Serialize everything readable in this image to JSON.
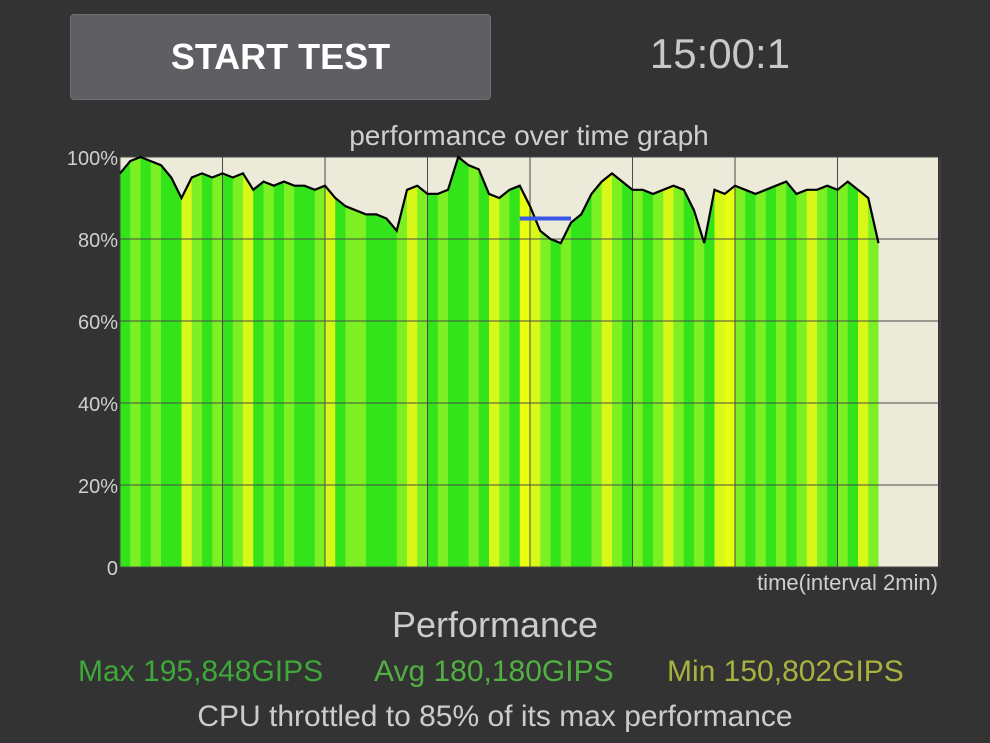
{
  "header": {
    "start_button_label": "START TEST",
    "timer": "15:00:1"
  },
  "chart_data": {
    "type": "area",
    "title": "performance over time graph",
    "xlabel": "time(interval 2min)",
    "ylabel": "",
    "ylim": [
      0,
      100
    ],
    "y_tick_labels": [
      "0",
      "20%",
      "40%",
      "60%",
      "80%",
      "100%"
    ],
    "grid": true,
    "x_interval_minutes": 2,
    "plot_background": "#ecead9",
    "fill_colors": [
      "#33e41a",
      "#7cf022",
      "#d8f81a",
      "#e8ff10"
    ],
    "line_color": "#000000",
    "marker_color": "#3a55e8",
    "x": [
      0,
      0.1,
      0.2,
      0.3,
      0.4,
      0.5,
      0.6,
      0.7,
      0.8,
      0.9,
      1,
      1.1,
      1.2,
      1.3,
      1.4,
      1.5,
      1.6,
      1.7,
      1.8,
      1.9,
      2,
      2.1,
      2.2,
      2.3,
      2.4,
      2.5,
      2.6,
      2.7,
      2.8,
      2.9,
      3,
      3.1,
      3.2,
      3.3,
      3.4,
      3.5,
      3.6,
      3.7,
      3.8,
      3.9,
      4,
      4.1,
      4.2,
      4.3,
      4.4,
      4.5,
      4.6,
      4.7,
      4.8,
      4.9,
      5,
      5.1,
      5.2,
      5.3,
      5.4,
      5.5,
      5.6,
      5.7,
      5.8,
      5.9,
      6,
      6.1,
      6.2,
      6.3,
      6.4,
      6.5,
      6.6,
      6.7,
      6.8,
      6.9,
      7,
      7.1,
      7.2,
      7.3,
      7.4
    ],
    "values": [
      96,
      99,
      100,
      99,
      98,
      95,
      90,
      95,
      96,
      95,
      96,
      95,
      96,
      92,
      94,
      93,
      94,
      93,
      93,
      92,
      93,
      90,
      88,
      87,
      86,
      86,
      85,
      82,
      92,
      93,
      91,
      91,
      92,
      100,
      98,
      97,
      91,
      90,
      92,
      93,
      88,
      82,
      80,
      79,
      84,
      86,
      91,
      94,
      96,
      94,
      92,
      92,
      91,
      92,
      93,
      92,
      87,
      79,
      92,
      91,
      93,
      92,
      91,
      92,
      93,
      94,
      91,
      92,
      92,
      93,
      92,
      94,
      92,
      90,
      79
    ],
    "marker": {
      "x_start": 3.9,
      "x_end": 4.4,
      "y": 85
    }
  },
  "footer": {
    "performance_title": "Performance",
    "max": "Max 195,848GIPS",
    "avg": "Avg 180,180GIPS",
    "min": "Min 150,802GIPS",
    "max_color": "#3fa83a",
    "avg_color": "#52b043",
    "min_color": "#a9b23f",
    "throttle_text": "CPU throttled to 85% of its max performance"
  }
}
